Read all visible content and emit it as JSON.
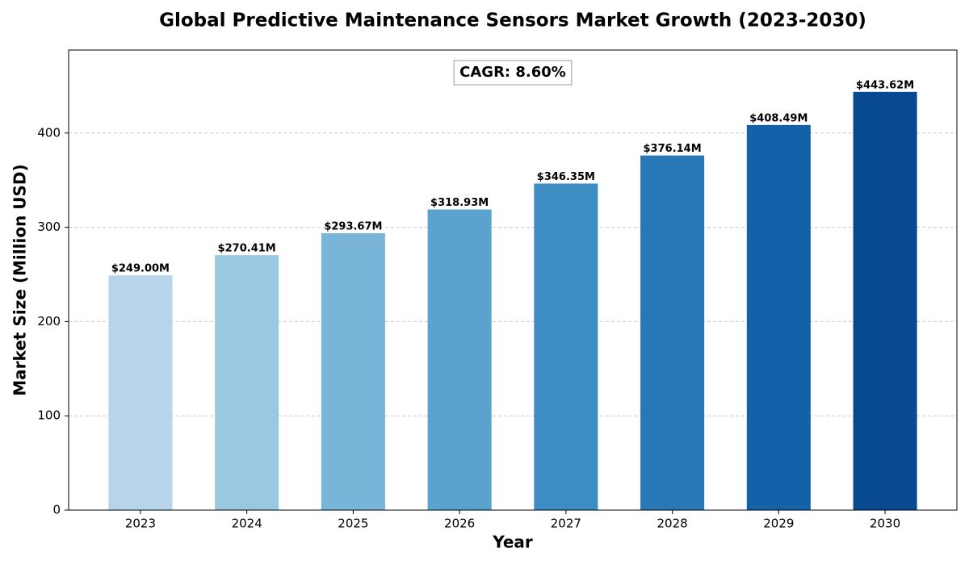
{
  "chart_data": {
    "type": "bar",
    "title": "Global Predictive Maintenance Sensors Market Growth (2023-2030)",
    "x_label": "Year",
    "y_label": "Market Size (Million USD)",
    "annotation": "CAGR: 8.60%",
    "categories": [
      "2023",
      "2024",
      "2025",
      "2026",
      "2027",
      "2028",
      "2029",
      "2030"
    ],
    "values": [
      249.0,
      270.41,
      293.67,
      318.93,
      346.35,
      376.14,
      408.49,
      443.62
    ],
    "value_labels": [
      "$249.00M",
      "$270.41M",
      "$293.67M",
      "$318.93M",
      "$346.35M",
      "$376.14M",
      "$408.49M",
      "$443.62M"
    ],
    "colors": [
      "#b7d4ea",
      "#9ac8e0",
      "#79b5d9",
      "#5ba3cf",
      "#3d8dc4",
      "#2878b8",
      "#1561a9",
      "#084a92"
    ],
    "ylim": [
      0,
      488
    ],
    "yticks": [
      0,
      100,
      200,
      300,
      400
    ],
    "grid": true
  }
}
